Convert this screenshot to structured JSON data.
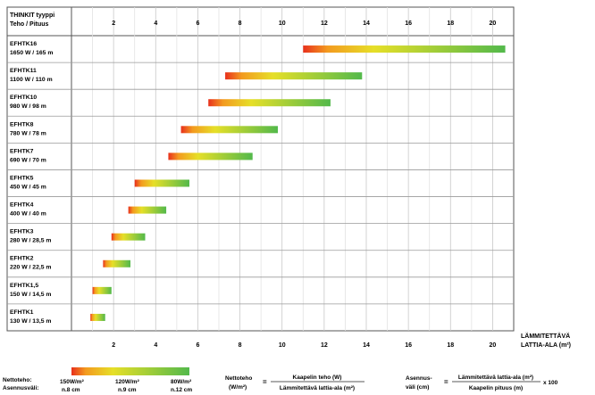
{
  "chart_data": {
    "type": "bar",
    "title": "",
    "header": {
      "line1": "THINKIT tyyppi",
      "line2": "Teho / Pituus"
    },
    "x_ticks": [
      "2",
      "4",
      "6",
      "8",
      "10",
      "12",
      "14",
      "16",
      "18",
      "20"
    ],
    "xlim": [
      0,
      21
    ],
    "x_axis_label": {
      "line1": "LÄMMITETTÄVÄ",
      "line2": "LATTIA-ALA (m²)"
    },
    "grid": true,
    "colors": {
      "red": "#e8301c",
      "orange": "#f39a1f",
      "yellow": "#e6df28",
      "green": "#53b94b"
    },
    "rows": [
      {
        "name": "EFHTK16",
        "spec": "1650 W / 165 m",
        "min": 11.0,
        "max": 20.6
      },
      {
        "name": "EFHTK11",
        "spec": "1100 W / 110 m",
        "min": 7.3,
        "max": 13.8
      },
      {
        "name": "EFHTK10",
        "spec": "980 W / 98 m",
        "min": 6.5,
        "max": 12.3
      },
      {
        "name": "EFHTK8",
        "spec": "780 W / 78 m",
        "min": 5.2,
        "max": 9.8
      },
      {
        "name": "EFHTK7",
        "spec": "690 W / 70 m",
        "min": 4.6,
        "max": 8.6
      },
      {
        "name": "EFHTK5",
        "spec": "450 W / 45 m",
        "min": 3.0,
        "max": 5.6
      },
      {
        "name": "EFHTK4",
        "spec": "400 W / 40 m",
        "min": 2.7,
        "max": 4.5
      },
      {
        "name": "EFHTK3",
        "spec": "280 W / 28,5 m",
        "min": 1.9,
        "max": 3.5
      },
      {
        "name": "EFHTK2",
        "spec": "220 W / 22,5 m",
        "min": 1.5,
        "max": 2.8
      },
      {
        "name": "EFHTK1,5",
        "spec": "150 W / 14,5 m",
        "min": 1.0,
        "max": 1.9
      },
      {
        "name": "EFHTK1",
        "spec": "130 W / 13,5 m",
        "min": 0.9,
        "max": 1.6
      }
    ]
  },
  "legend": {
    "row_label_1": "Nettoteho:",
    "row_label_2": "Asennusväli:",
    "stops": [
      {
        "power": "150W/m²",
        "spacing": "n.8 cm"
      },
      {
        "power": "120W/m²",
        "spacing": "n.9 cm"
      },
      {
        "power": "80W/m²",
        "spacing": "n.12 cm"
      }
    ]
  },
  "formulas": {
    "f1_left_1": "Nettoteho",
    "f1_left_2": "(W/m²)",
    "f1_numerator": "Kaapelin teho (W)",
    "f1_denominator": "Lämmitettävä lattia-ala (m²)",
    "f2_left_1": "Asennus-",
    "f2_left_2": "väli (cm)",
    "f2_numerator": "Lämmitettävä lattia-ala (m²)",
    "f2_denominator": "Kaapelin pituus (m)",
    "f2_multiplier": "x 100"
  }
}
